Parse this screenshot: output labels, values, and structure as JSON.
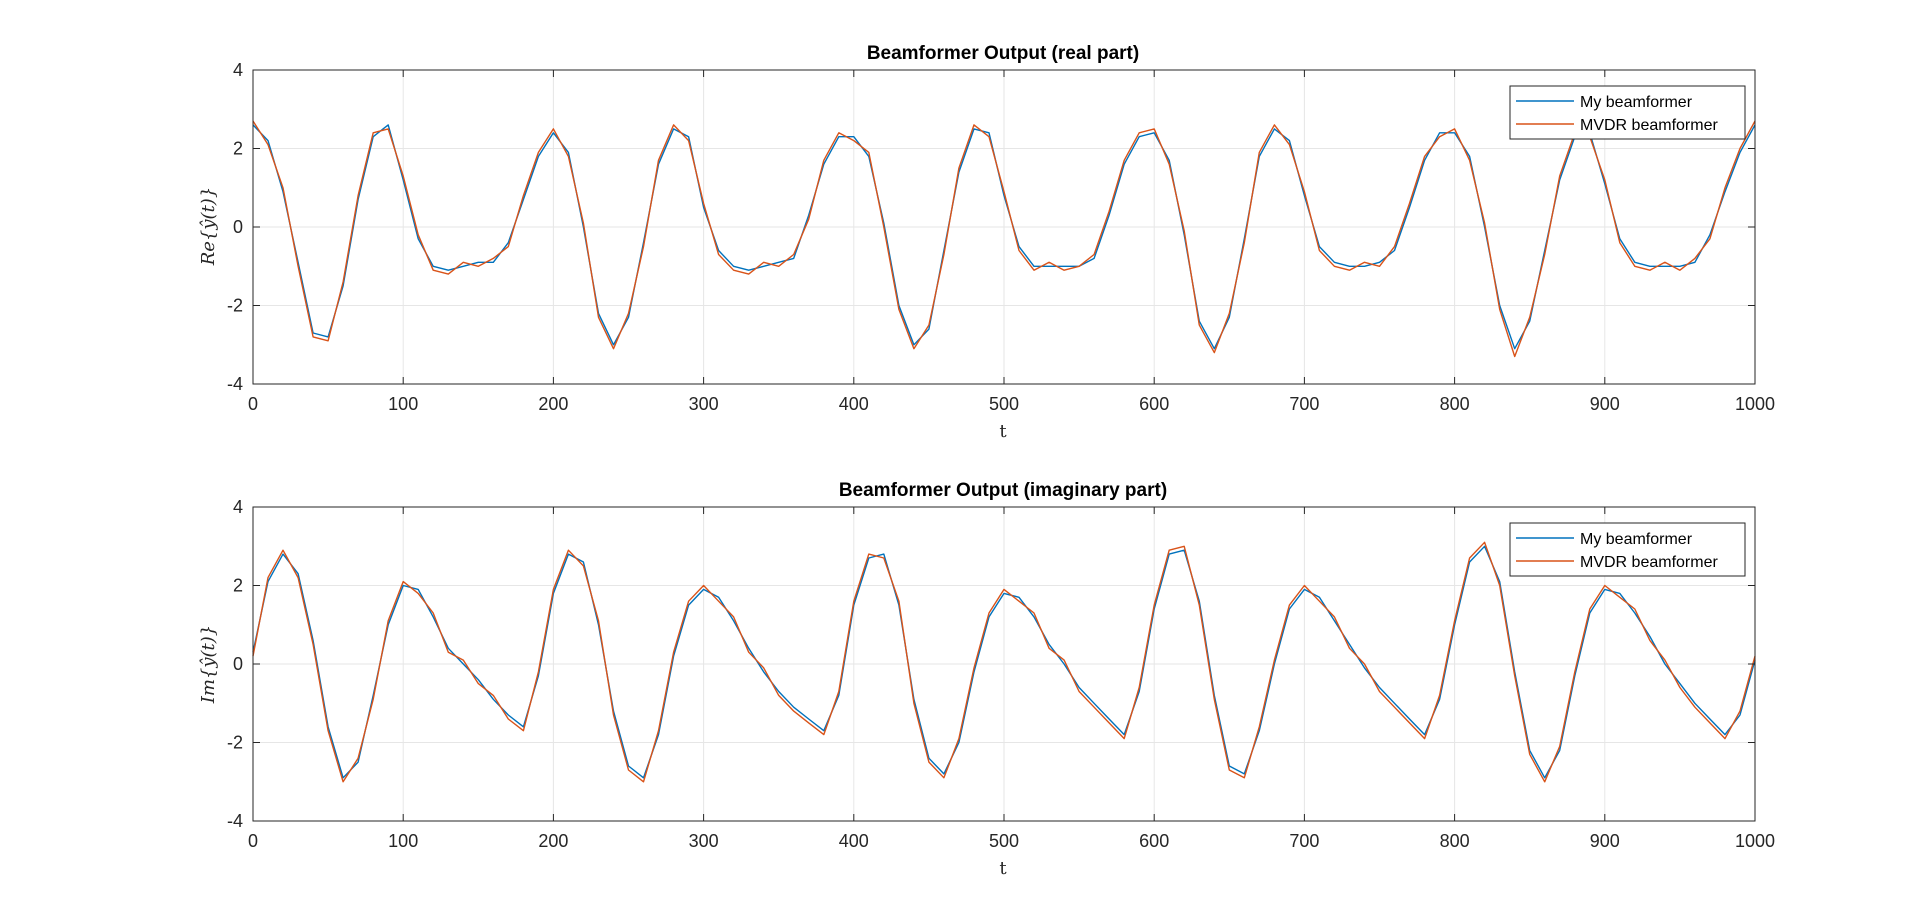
{
  "colors": {
    "series1": "#0072BD",
    "series2": "#D95319",
    "grid": "#e6e6e6",
    "axis": "#262626"
  },
  "chart_data": [
    {
      "type": "line",
      "title": "Beamformer Output (real part)",
      "xlabel": "t",
      "ylabel": "Re{ŷ(t)}",
      "xlim": [
        0,
        1000
      ],
      "ylim": [
        -4,
        4
      ],
      "xticks": [
        "0",
        "100",
        "200",
        "300",
        "400",
        "500",
        "600",
        "700",
        "800",
        "900",
        "1000"
      ],
      "yticks": [
        "4",
        "2",
        "0",
        "-2",
        "-4"
      ],
      "grid": true,
      "legend_position": "top-right",
      "x": [
        0,
        10,
        20,
        30,
        40,
        50,
        60,
        70,
        80,
        90,
        100,
        110,
        120,
        130,
        140,
        150,
        160,
        170,
        180,
        190,
        200,
        210,
        220,
        230,
        240,
        250,
        260,
        270,
        280,
        290,
        300,
        310,
        320,
        330,
        340,
        350,
        360,
        370,
        380,
        390,
        400,
        410,
        420,
        430,
        440,
        450,
        460,
        470,
        480,
        490,
        500,
        510,
        520,
        530,
        540,
        550,
        560,
        570,
        580,
        590,
        600,
        610,
        620,
        630,
        640,
        650,
        660,
        670,
        680,
        690,
        700,
        710,
        720,
        730,
        740,
        750,
        760,
        770,
        780,
        790,
        800,
        810,
        820,
        830,
        840,
        850,
        860,
        870,
        880,
        890,
        900,
        910,
        920,
        930,
        940,
        950,
        960,
        970,
        980,
        990,
        1000
      ],
      "series": [
        {
          "name": "My beamformer",
          "values": [
            2.6,
            2.2,
            0.9,
            -0.9,
            -2.7,
            -2.8,
            -1.5,
            0.7,
            2.3,
            2.6,
            1.2,
            -0.3,
            -1.0,
            -1.1,
            -1.0,
            -0.9,
            -0.9,
            -0.4,
            0.7,
            1.8,
            2.4,
            1.9,
            0.0,
            -2.2,
            -3.0,
            -2.3,
            -0.4,
            1.6,
            2.5,
            2.3,
            0.5,
            -0.6,
            -1.0,
            -1.1,
            -1.0,
            -0.9,
            -0.8,
            0.3,
            1.6,
            2.3,
            2.3,
            1.8,
            0.1,
            -2.0,
            -3.0,
            -2.6,
            -0.6,
            1.4,
            2.5,
            2.4,
            0.8,
            -0.5,
            -1.0,
            -1.0,
            -1.0,
            -1.0,
            -0.8,
            0.3,
            1.6,
            2.3,
            2.4,
            1.7,
            -0.2,
            -2.4,
            -3.1,
            -2.3,
            -0.3,
            1.8,
            2.5,
            2.2,
            0.8,
            -0.5,
            -0.9,
            -1.0,
            -1.0,
            -0.9,
            -0.6,
            0.5,
            1.7,
            2.4,
            2.4,
            1.8,
            0.0,
            -2.0,
            -3.1,
            -2.4,
            -0.6,
            1.2,
            2.3,
            2.4,
            1.1,
            -0.3,
            -0.9,
            -1.0,
            -1.0,
            -1.0,
            -0.9,
            -0.2,
            0.9,
            1.9,
            2.6
          ]
        },
        {
          "name": "MVDR beamformer",
          "values": [
            2.7,
            2.1,
            1.0,
            -1.0,
            -2.8,
            -2.9,
            -1.4,
            0.8,
            2.4,
            2.5,
            1.3,
            -0.2,
            -1.1,
            -1.2,
            -0.9,
            -1.0,
            -0.8,
            -0.5,
            0.8,
            1.9,
            2.5,
            1.8,
            0.1,
            -2.3,
            -3.1,
            -2.2,
            -0.5,
            1.7,
            2.6,
            2.2,
            0.6,
            -0.7,
            -1.1,
            -1.2,
            -0.9,
            -1.0,
            -0.7,
            0.2,
            1.7,
            2.4,
            2.2,
            1.9,
            0.0,
            -2.1,
            -3.1,
            -2.5,
            -0.7,
            1.5,
            2.6,
            2.3,
            0.9,
            -0.6,
            -1.1,
            -0.9,
            -1.1,
            -1.0,
            -0.7,
            0.4,
            1.7,
            2.4,
            2.5,
            1.6,
            -0.1,
            -2.5,
            -3.2,
            -2.2,
            -0.4,
            1.9,
            2.6,
            2.1,
            0.9,
            -0.6,
            -1.0,
            -1.1,
            -0.9,
            -1.0,
            -0.5,
            0.6,
            1.8,
            2.3,
            2.5,
            1.7,
            0.1,
            -2.1,
            -3.3,
            -2.3,
            -0.7,
            1.3,
            2.4,
            2.3,
            1.2,
            -0.4,
            -1.0,
            -1.1,
            -0.9,
            -1.1,
            -0.8,
            -0.3,
            1.0,
            2.0,
            2.7
          ]
        }
      ]
    },
    {
      "type": "line",
      "title": "Beamformer Output (imaginary part)",
      "xlabel": "t",
      "ylabel": "Im{ŷ(t)}",
      "xlim": [
        0,
        1000
      ],
      "ylim": [
        -4,
        4
      ],
      "xticks": [
        "0",
        "100",
        "200",
        "300",
        "400",
        "500",
        "600",
        "700",
        "800",
        "900",
        "1000"
      ],
      "yticks": [
        "4",
        "2",
        "0",
        "-2",
        "-4"
      ],
      "grid": true,
      "legend_position": "top-right",
      "x": [
        0,
        10,
        20,
        30,
        40,
        50,
        60,
        70,
        80,
        90,
        100,
        110,
        120,
        130,
        140,
        150,
        160,
        170,
        180,
        190,
        200,
        210,
        220,
        230,
        240,
        250,
        260,
        270,
        280,
        290,
        300,
        310,
        320,
        330,
        340,
        350,
        360,
        370,
        380,
        390,
        400,
        410,
        420,
        430,
        440,
        450,
        460,
        470,
        480,
        490,
        500,
        510,
        520,
        530,
        540,
        550,
        560,
        570,
        580,
        590,
        600,
        610,
        620,
        630,
        640,
        650,
        660,
        670,
        680,
        690,
        700,
        710,
        720,
        730,
        740,
        750,
        760,
        770,
        780,
        790,
        800,
        810,
        820,
        830,
        840,
        850,
        860,
        870,
        880,
        890,
        900,
        910,
        920,
        930,
        940,
        950,
        960,
        970,
        980,
        990,
        1000
      ],
      "series": [
        {
          "name": "My beamformer",
          "values": [
            0.3,
            2.1,
            2.8,
            2.3,
            0.6,
            -1.6,
            -2.9,
            -2.5,
            -0.8,
            1.0,
            2.0,
            1.9,
            1.2,
            0.4,
            0.0,
            -0.4,
            -0.9,
            -1.3,
            -1.6,
            -0.3,
            1.8,
            2.8,
            2.6,
            1.0,
            -1.2,
            -2.6,
            -2.9,
            -1.8,
            0.2,
            1.5,
            1.9,
            1.7,
            1.1,
            0.4,
            -0.2,
            -0.7,
            -1.1,
            -1.4,
            -1.7,
            -0.8,
            1.5,
            2.7,
            2.8,
            1.5,
            -0.9,
            -2.4,
            -2.8,
            -2.0,
            -0.2,
            1.2,
            1.8,
            1.7,
            1.2,
            0.5,
            0.0,
            -0.6,
            -1.0,
            -1.4,
            -1.8,
            -0.7,
            1.4,
            2.8,
            2.9,
            1.6,
            -0.8,
            -2.6,
            -2.8,
            -1.7,
            0.0,
            1.4,
            1.9,
            1.7,
            1.1,
            0.5,
            -0.1,
            -0.6,
            -1.0,
            -1.4,
            -1.8,
            -0.9,
            1.0,
            2.6,
            3.0,
            2.1,
            -0.2,
            -2.2,
            -2.9,
            -2.2,
            -0.3,
            1.3,
            1.9,
            1.8,
            1.3,
            0.7,
            0.0,
            -0.5,
            -1.0,
            -1.4,
            -1.8,
            -1.3,
            0.1
          ]
        },
        {
          "name": "MVDR beamformer",
          "values": [
            0.2,
            2.2,
            2.9,
            2.2,
            0.5,
            -1.7,
            -3.0,
            -2.4,
            -0.9,
            1.1,
            2.1,
            1.8,
            1.3,
            0.3,
            0.1,
            -0.5,
            -0.8,
            -1.4,
            -1.7,
            -0.2,
            1.9,
            2.9,
            2.5,
            1.1,
            -1.3,
            -2.7,
            -3.0,
            -1.7,
            0.3,
            1.6,
            2.0,
            1.6,
            1.2,
            0.3,
            -0.1,
            -0.8,
            -1.2,
            -1.5,
            -1.8,
            -0.7,
            1.6,
            2.8,
            2.7,
            1.6,
            -1.0,
            -2.5,
            -2.9,
            -1.9,
            -0.1,
            1.3,
            1.9,
            1.6,
            1.3,
            0.4,
            0.1,
            -0.7,
            -1.1,
            -1.5,
            -1.9,
            -0.6,
            1.5,
            2.9,
            3.0,
            1.5,
            -0.9,
            -2.7,
            -2.9,
            -1.6,
            0.1,
            1.5,
            2.0,
            1.6,
            1.2,
            0.4,
            0.0,
            -0.7,
            -1.1,
            -1.5,
            -1.9,
            -0.8,
            1.1,
            2.7,
            3.1,
            2.0,
            -0.3,
            -2.3,
            -3.0,
            -2.1,
            -0.2,
            1.4,
            2.0,
            1.7,
            1.4,
            0.6,
            0.1,
            -0.6,
            -1.1,
            -1.5,
            -1.9,
            -1.2,
            0.2
          ]
        }
      ]
    }
  ]
}
